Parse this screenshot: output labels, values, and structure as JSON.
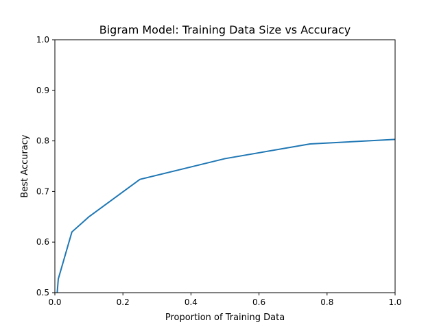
{
  "chart_data": {
    "type": "line",
    "title": "Bigram Model: Training Data Size vs Accuracy",
    "xlabel": "Proportion of Training Data",
    "ylabel": "Best Accuracy",
    "xlim": [
      0.0,
      1.0
    ],
    "ylim": [
      0.5,
      1.0
    ],
    "xticks": [
      "0.0",
      "0.2",
      "0.4",
      "0.6",
      "0.8",
      "1.0"
    ],
    "yticks": [
      "0.5",
      "0.6",
      "0.7",
      "0.8",
      "0.9",
      "1.0"
    ],
    "grid": false,
    "series": [
      {
        "color": "#1f77b4",
        "x": [
          0.001,
          0.01,
          0.05,
          0.1,
          0.25,
          0.5,
          0.75,
          1.0
        ],
        "y": [
          0.45,
          0.527,
          0.62,
          0.65,
          0.724,
          0.765,
          0.794,
          0.803
        ]
      }
    ]
  }
}
